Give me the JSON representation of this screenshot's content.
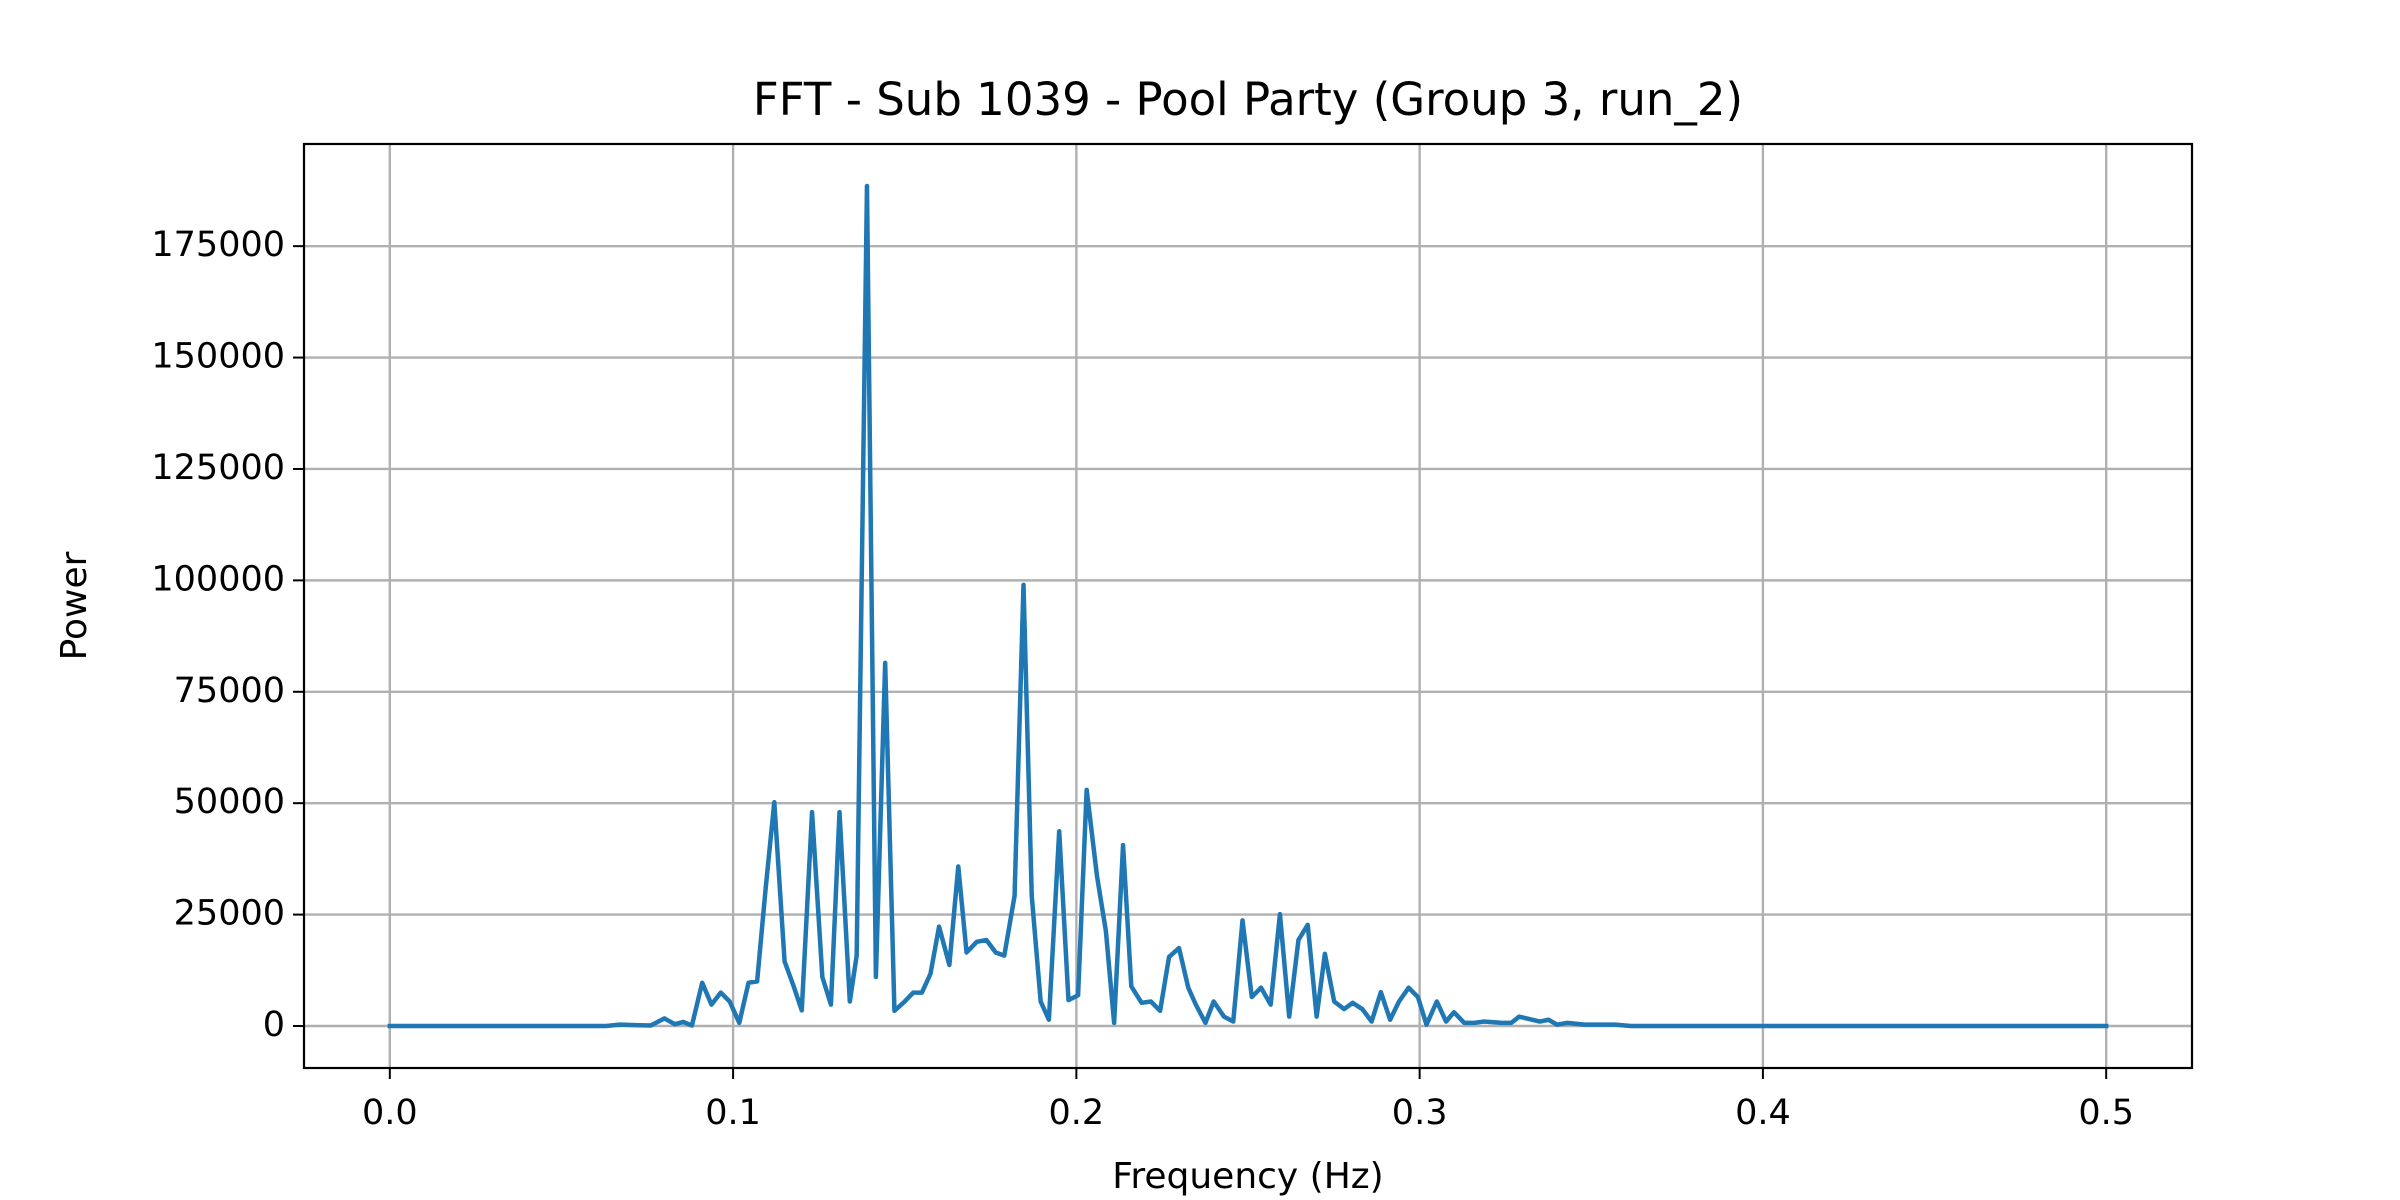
{
  "chart_data": {
    "type": "line",
    "title": "FFT - Sub 1039 - Pool Party (Group 3, run_2)",
    "xlabel": "Frequency (Hz)",
    "ylabel": "Power",
    "x": [
      0,
      0.063,
      0.067,
      0.076,
      0.08,
      0.083,
      0.0855,
      0.088,
      0.091,
      0.0937,
      0.0964,
      0.099,
      0.1018,
      0.1045,
      0.107,
      0.1095,
      0.112,
      0.115,
      0.1176,
      0.12,
      0.123,
      0.126,
      0.1285,
      0.131,
      0.134,
      0.136,
      0.139,
      0.1416,
      0.1443,
      0.147,
      0.15,
      0.1525,
      0.155,
      0.1575,
      0.16,
      0.163,
      0.1656,
      0.168,
      0.171,
      0.1738,
      0.1765,
      0.179,
      0.182,
      0.1846,
      0.187,
      0.1896,
      0.192,
      0.195,
      0.1977,
      0.2005,
      0.203,
      0.206,
      0.2086,
      0.211,
      0.2136,
      0.216,
      0.219,
      0.2217,
      0.2244,
      0.227,
      0.2299,
      0.2326,
      0.2348,
      0.2376,
      0.24,
      0.243,
      0.2457,
      0.2484,
      0.2511,
      0.2538,
      0.2566,
      0.2593,
      0.262,
      0.2647,
      0.2674,
      0.27,
      0.2724,
      0.2751,
      0.278,
      0.2805,
      0.2833,
      0.286,
      0.2887,
      0.2914,
      0.294,
      0.2968,
      0.2995,
      0.302,
      0.305,
      0.3077,
      0.31,
      0.313,
      0.316,
      0.3186,
      0.324,
      0.3267,
      0.329,
      0.335,
      0.3376,
      0.34,
      0.343,
      0.348,
      0.357,
      0.3615,
      0.384,
      0.5
    ],
    "series": [
      {
        "name": "Power",
        "color": "#1f77b4",
        "values": [
          0,
          0,
          300,
          100,
          1700,
          400,
          900,
          100,
          9700,
          4800,
          7500,
          5500,
          700,
          9700,
          10000,
          31000,
          50200,
          14500,
          9000,
          3500,
          48000,
          11000,
          4800,
          48000,
          5500,
          15800,
          188500,
          11000,
          81500,
          3400,
          5500,
          7500,
          7500,
          11700,
          22300,
          13700,
          35800,
          16500,
          18900,
          19300,
          16500,
          15800,
          29200,
          99000,
          29200,
          5500,
          1400,
          43700,
          5800,
          6900,
          53000,
          33700,
          21300,
          700,
          40600,
          8900,
          5200,
          5500,
          3400,
          15500,
          17500,
          8600,
          4800,
          700,
          5500,
          2100,
          1000,
          23700,
          6500,
          8600,
          4800,
          25100,
          2100,
          19300,
          22700,
          2100,
          16200,
          5500,
          3800,
          5200,
          3800,
          1000,
          7600,
          1400,
          5500,
          8600,
          6500,
          300,
          5500,
          1000,
          3100,
          700,
          700,
          1000,
          700,
          700,
          2100,
          1000,
          1400,
          300,
          700,
          300,
          300,
          0,
          0,
          0
        ]
      }
    ],
    "xlim": [
      -0.025,
      0.525
    ],
    "ylim": [
      -9425,
      197925
    ],
    "xticks": [
      {
        "value": 0,
        "label": "0.0"
      },
      0.1,
      0.2,
      0.3,
      0.4,
      0.5
    ],
    "yticks": [
      0,
      25000,
      50000,
      75000,
      100000,
      125000,
      150000,
      175000
    ],
    "grid": true
  }
}
